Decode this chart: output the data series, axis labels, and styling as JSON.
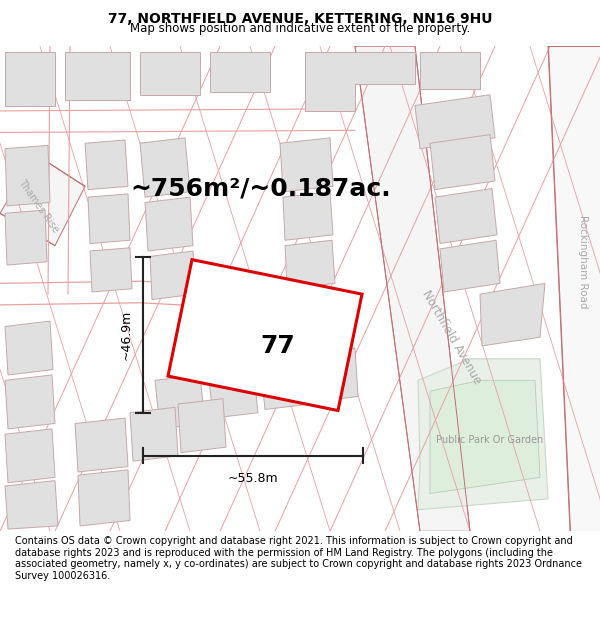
{
  "title": "77, NORTHFIELD AVENUE, KETTERING, NN16 9HU",
  "subtitle": "Map shows position and indicative extent of the property.",
  "footnote": "Contains OS data © Crown copyright and database right 2021. This information is subject to Crown copyright and database rights 2023 and is reproduced with the permission of HM Land Registry. The polygons (including the associated geometry, namely x, y co-ordinates) are subject to Crown copyright and database rights 2023 Ordnance Survey 100026316.",
  "area_text": "~756m²/~0.187ac.",
  "label_77": "77",
  "dim_width": "~55.8m",
  "dim_height": "~46.9m",
  "road_label_northfield": "Northfield Avenue",
  "road_label_rockingham": "Rockingham Road",
  "road_label_thames": "Thames Rise",
  "park_label": "Public Park Or Garden",
  "bg_color": "#ffffff",
  "map_bg": "#ffffff",
  "header_bg": "#ffffff",
  "footer_bg": "#ffffff",
  "plot_outline_color": "#dd0000",
  "road_line_color": "#e8a0a0",
  "road_line_color_dark": "#c07070",
  "road_fill_color": "#e8e8e8",
  "building_fill": "#e0e0e0",
  "building_edge": "#c8a8a8",
  "road_area_fill": "#ffffff",
  "park_fill": "#e8f0e8",
  "park_edge": "#c8d8c8",
  "dim_line_color": "#222222",
  "road_label_color": "#aaaaaa",
  "title_fontsize": 10,
  "subtitle_fontsize": 8.5,
  "footnote_fontsize": 7.0,
  "area_fontsize": 18,
  "label_fontsize": 18,
  "dim_fontsize": 9
}
